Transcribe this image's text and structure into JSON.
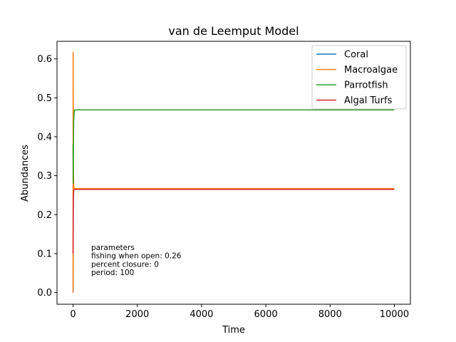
{
  "chart_data": {
    "type": "line",
    "title": "van de Leemput Model",
    "xlabel": "Time",
    "ylabel": "Abundances",
    "xlim": [
      -500,
      10500
    ],
    "ylim": [
      -0.03,
      0.645
    ],
    "xticks": [
      0,
      2000,
      4000,
      6000,
      8000,
      10000
    ],
    "yticks": [
      0.0,
      0.1,
      0.2,
      0.3,
      0.4,
      0.5,
      0.6
    ],
    "grid": false,
    "legend_position": "top-right",
    "series": [
      {
        "name": "Coral",
        "color": "#1f77b4",
        "x": [
          0,
          5,
          10,
          20,
          40,
          10000
        ],
        "y": [
          0.0,
          0.15,
          0.24,
          0.265,
          0.266,
          0.266
        ]
      },
      {
        "name": "Macroalgae",
        "color": "#ff7f0e",
        "x": [
          0,
          1,
          5,
          10,
          20,
          40,
          10000
        ],
        "y": [
          0.0,
          0.617,
          0.45,
          0.33,
          0.275,
          0.267,
          0.267
        ]
      },
      {
        "name": "Parrotfish",
        "color": "#2ca02c",
        "x": [
          0,
          5,
          10,
          20,
          40,
          10000
        ],
        "y": [
          0.38,
          0.28,
          0.35,
          0.44,
          0.469,
          0.469
        ]
      },
      {
        "name": "Algal Turfs",
        "color": "#d62728",
        "x": [
          0,
          5,
          10,
          20,
          40,
          10000
        ],
        "y": [
          0.1,
          0.2,
          0.25,
          0.262,
          0.265,
          0.265
        ]
      }
    ],
    "annotation": [
      "parameters",
      "fishing when open: 0.26",
      "percent closure: 0",
      "period: 100"
    ]
  }
}
